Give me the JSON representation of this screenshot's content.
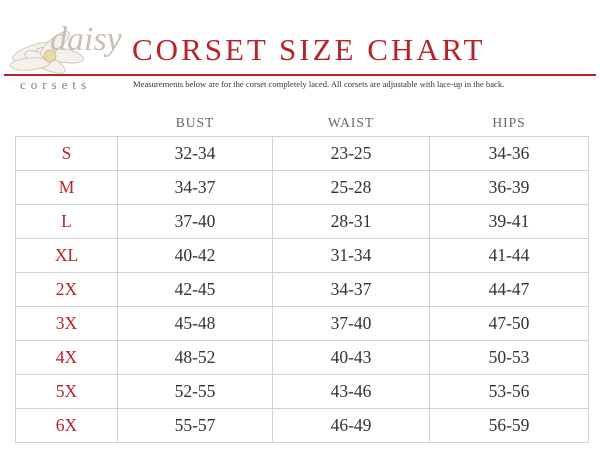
{
  "header": {
    "logo": {
      "name": "daisy",
      "tagline": "corsets"
    },
    "title": "CORSET SIZE CHART",
    "subtitle": "Measurements below are for the corset completely laced.  All corsets are adjustable with lace-up in the back."
  },
  "table": {
    "headers": [
      "BUST",
      "WAIST",
      "HIPS"
    ],
    "rows": [
      [
        "S",
        "32-34",
        "23-25",
        "34-36"
      ],
      [
        "M",
        "34-37",
        "25-28",
        "36-39"
      ],
      [
        "L",
        "37-40",
        "28-31",
        "39-41"
      ],
      [
        "XL",
        "40-42",
        "31-34",
        "41-44"
      ],
      [
        "2X",
        "42-45",
        "34-37",
        "44-47"
      ],
      [
        "3X",
        "45-48",
        "37-40",
        "47-50"
      ],
      [
        "4X",
        "48-52",
        "40-43",
        "50-53"
      ],
      [
        "5X",
        "52-55",
        "43-46",
        "53-56"
      ],
      [
        "6X",
        "55-57",
        "46-49",
        "56-59"
      ]
    ]
  }
}
